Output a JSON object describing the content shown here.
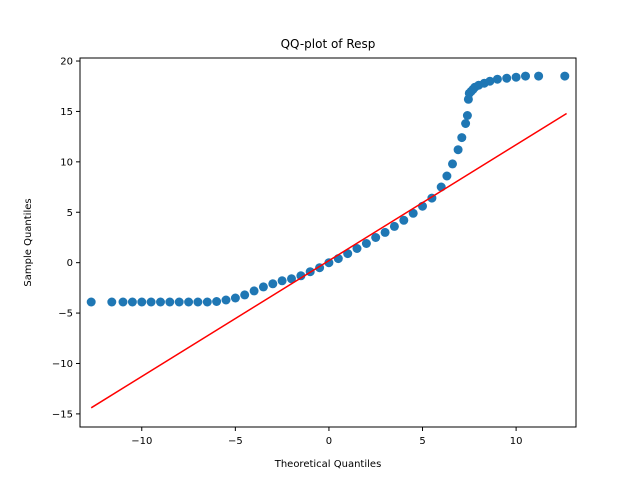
{
  "chart_data": {
    "type": "scatter",
    "title": "QQ-plot of Resp",
    "xlabel": "Theoretical Quantiles",
    "ylabel": "Sample Quantiles",
    "xlim": [
      -13.3,
      13.2
    ],
    "ylim": [
      -16.3,
      20.3
    ],
    "xticks": [
      -10,
      -5,
      0,
      5,
      10
    ],
    "yticks": [
      -15,
      -10,
      -5,
      0,
      5,
      10,
      15,
      20
    ],
    "xtick_labels": [
      "−10",
      "−5",
      "0",
      "5",
      "10"
    ],
    "ytick_labels": [
      "−15",
      "−10",
      "−5",
      "0",
      "5",
      "10",
      "15",
      "20"
    ],
    "grid": false,
    "marker_color": "#1f77b4",
    "line_color": "#ff0000",
    "reference_line": {
      "x": [
        -12.7,
        12.7
      ],
      "y": [
        -14.4,
        14.8
      ]
    },
    "points": {
      "x": [
        -12.7,
        -11.6,
        -11.0,
        -10.5,
        -10.0,
        -9.5,
        -9.0,
        -8.5,
        -8.0,
        -7.5,
        -7.0,
        -6.5,
        -6.0,
        -5.5,
        -5.0,
        -4.5,
        -4.0,
        -3.5,
        -3.0,
        -2.5,
        -2.0,
        -1.5,
        -1.0,
        -0.5,
        0.0,
        0.5,
        1.0,
        1.5,
        2.0,
        2.5,
        3.0,
        3.5,
        4.0,
        4.5,
        5.0,
        5.5,
        6.0,
        6.3,
        6.6,
        6.9,
        7.1,
        7.3,
        7.4,
        7.45,
        7.5,
        7.6,
        7.7,
        7.8,
        8.0,
        8.3,
        8.6,
        9.0,
        9.5,
        10.0,
        10.5,
        11.2,
        12.6
      ],
      "y": [
        -3.9,
        -3.9,
        -3.9,
        -3.9,
        -3.9,
        -3.9,
        -3.9,
        -3.9,
        -3.9,
        -3.9,
        -3.9,
        -3.9,
        -3.85,
        -3.7,
        -3.5,
        -3.2,
        -2.8,
        -2.4,
        -2.1,
        -1.8,
        -1.6,
        -1.3,
        -0.9,
        -0.5,
        0.0,
        0.4,
        0.9,
        1.4,
        1.9,
        2.5,
        3.0,
        3.6,
        4.2,
        4.9,
        5.6,
        6.4,
        7.5,
        8.6,
        9.8,
        11.2,
        12.4,
        13.8,
        14.6,
        16.2,
        16.8,
        17.0,
        17.2,
        17.4,
        17.6,
        17.8,
        18.0,
        18.2,
        18.3,
        18.4,
        18.5,
        18.5,
        18.5
      ]
    }
  }
}
